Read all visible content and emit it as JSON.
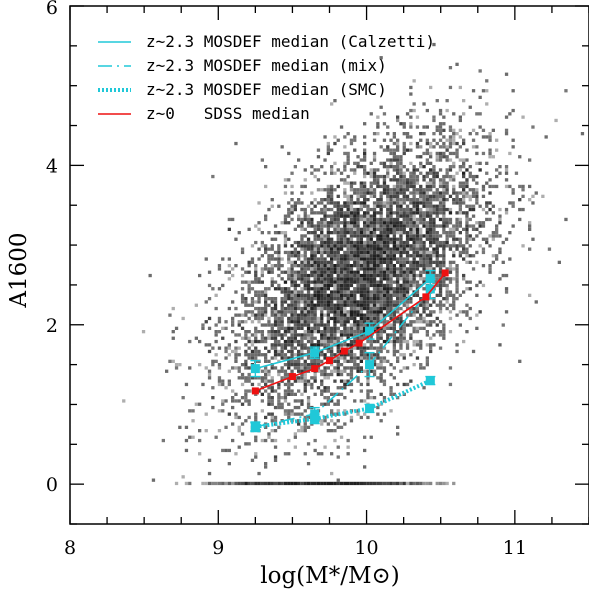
{
  "chart_data": {
    "type": "scatter",
    "xlabel": "log(M*/M⊙)",
    "ylabel": "A1600",
    "xlim": [
      8,
      11.5
    ],
    "ylim": [
      -0.5,
      6
    ],
    "x_ticks": [
      "8",
      "9",
      "10",
      "11"
    ],
    "y_ticks": [
      "0",
      "2",
      "4",
      "6"
    ],
    "legend": {
      "placement": "top-left"
    },
    "background": "2D density of SDSS galaxies (grayscale), A1600 zero-value row near log M 8.7-10.6",
    "series": [
      {
        "name": "z~2.3 MOSDEF median (Calzetti)",
        "style": "solid",
        "color": "#20c8d8",
        "x": [
          9.25,
          9.65,
          10.02,
          10.43
        ],
        "y": [
          1.45,
          1.65,
          1.92,
          2.58
        ],
        "err": [
          0.1,
          0.07,
          0.1,
          0.1
        ]
      },
      {
        "name": "z~2.3 MOSDEF median (mix)",
        "style": "dashdot",
        "color": "#20c8d8",
        "x": [
          9.25,
          9.65,
          10.02,
          10.43
        ],
        "y": [
          0.72,
          0.88,
          1.5,
          2.45
        ],
        "err": [
          0.06,
          0.08,
          0.15,
          0.12
        ]
      },
      {
        "name": "z~2.3 MOSDEF median (SMC)",
        "style": "dotted",
        "color": "#20c8d8",
        "x": [
          9.25,
          9.65,
          10.02,
          10.43
        ],
        "y": [
          0.72,
          0.82,
          0.95,
          1.3
        ],
        "err": [
          0.05,
          0.06,
          0.05,
          0.05
        ]
      },
      {
        "name": "z~0   SDSS median",
        "style": "solid",
        "color": "#ee1111",
        "x": [
          9.25,
          9.5,
          9.65,
          9.75,
          9.85,
          9.95,
          10.4,
          10.53
        ],
        "y": [
          1.17,
          1.35,
          1.45,
          1.55,
          1.67,
          1.77,
          2.35,
          2.65
        ]
      }
    ]
  }
}
